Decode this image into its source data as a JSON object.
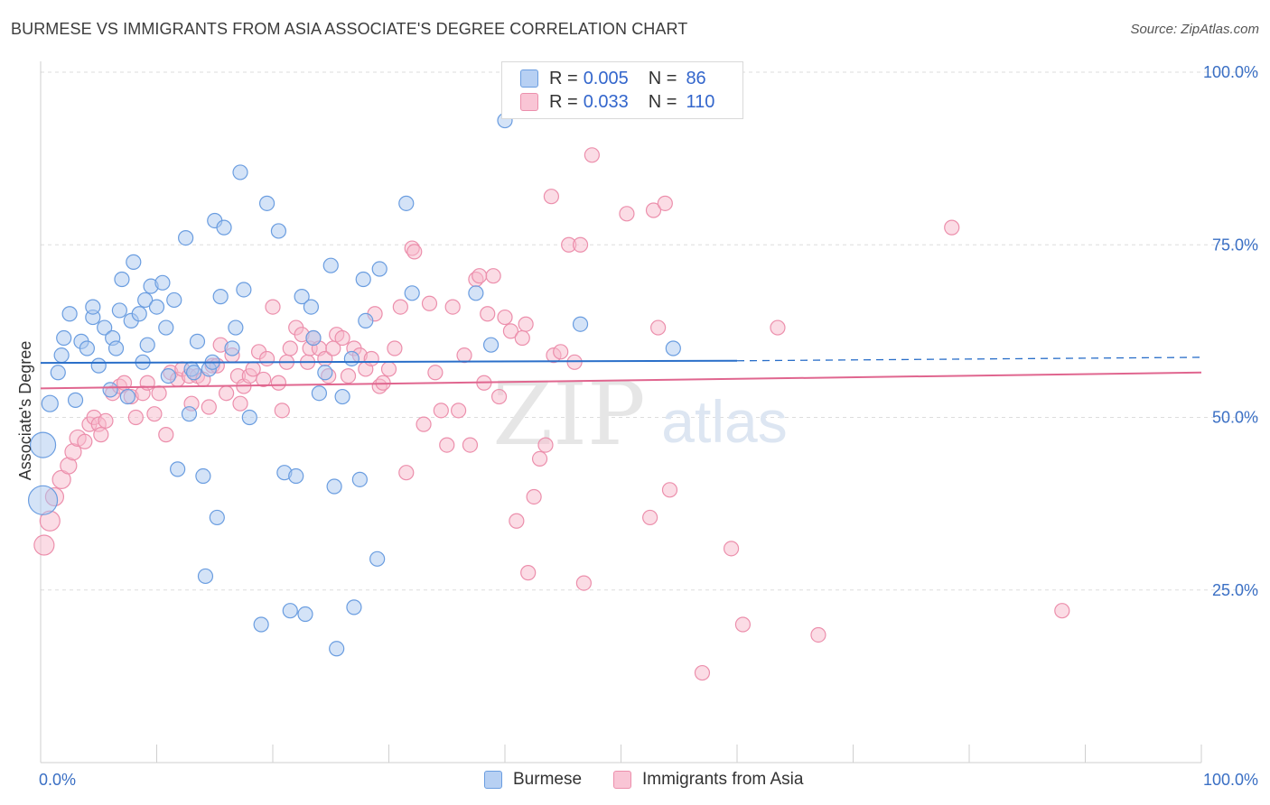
{
  "title": "BURMESE VS IMMIGRANTS FROM ASIA ASSOCIATE'S DEGREE CORRELATION CHART",
  "source": "Source: ZipAtlas.com",
  "watermark": {
    "zip": "ZIP",
    "atlas": "atlas"
  },
  "colors": {
    "burmese_fill": "#a9c8f0",
    "burmese_stroke": "#6a9de0",
    "burmese_line": "#2a6fc9",
    "asia_fill": "#f7b9cc",
    "asia_stroke": "#ec8fac",
    "asia_line": "#e0668f",
    "tick_label": "#3a6fc4",
    "grid": "#dddddd"
  },
  "legend": {
    "rows": [
      {
        "r_label": "R =",
        "r_value": "0.005",
        "n_label": "N =",
        "n_value": "86"
      },
      {
        "r_label": "R =",
        "r_value": "0.033",
        "n_label": "N =",
        "n_value": "110"
      }
    ]
  },
  "chart_data": {
    "type": "scatter",
    "title": "BURMESE VS IMMIGRANTS FROM ASIA ASSOCIATE'S DEGREE CORRELATION CHART",
    "xlabel": "",
    "ylabel": "Associate's Degree",
    "xlim": [
      0,
      100
    ],
    "ylim": [
      0,
      105
    ],
    "x_tick_labels": [
      "0.0%",
      "100.0%"
    ],
    "y_ticks": [
      25,
      50,
      75,
      100
    ],
    "y_tick_labels": [
      "25.0%",
      "50.0%",
      "75.0%",
      "100.0%"
    ],
    "grid": "horizontal dashed",
    "legend_placement": "top-center",
    "series": [
      {
        "name": "Burmese",
        "r": 0.005,
        "n": 86,
        "trend": {
          "x": [
            0,
            60
          ],
          "y": [
            57.9,
            58.2
          ],
          "dashed_extension": {
            "x": [
              60,
              100
            ],
            "y": [
              58.2,
              58.7
            ]
          }
        },
        "points": [
          [
            0.2,
            46,
            14
          ],
          [
            0.2,
            38,
            16
          ],
          [
            0.8,
            52,
            9
          ],
          [
            1.5,
            56.5,
            8
          ],
          [
            1.8,
            59,
            8
          ],
          [
            2,
            61.5,
            8
          ],
          [
            2.5,
            65,
            8
          ],
          [
            3,
            52.5,
            8
          ],
          [
            3.5,
            61,
            8
          ],
          [
            4,
            60,
            8
          ],
          [
            4.5,
            64.5,
            8
          ],
          [
            4.5,
            66,
            8
          ],
          [
            5,
            57.5,
            8
          ],
          [
            5.5,
            63,
            8
          ],
          [
            6,
            54,
            8
          ],
          [
            6.2,
            61.5,
            8
          ],
          [
            6.5,
            60,
            8
          ],
          [
            6.8,
            65.5,
            8
          ],
          [
            7,
            70,
            8
          ],
          [
            7.5,
            53,
            8
          ],
          [
            7.8,
            64,
            8
          ],
          [
            8,
            72.5,
            8
          ],
          [
            8.5,
            65,
            8
          ],
          [
            8.8,
            58,
            8
          ],
          [
            9,
            67,
            8
          ],
          [
            9.2,
            60.5,
            8
          ],
          [
            9.5,
            69,
            8
          ],
          [
            10,
            66,
            8
          ],
          [
            10.5,
            69.5,
            8
          ],
          [
            10.8,
            63,
            8
          ],
          [
            11,
            56,
            8
          ],
          [
            11.5,
            67,
            8
          ],
          [
            11.8,
            42.5,
            8
          ],
          [
            12.5,
            76,
            8
          ],
          [
            12.8,
            50.5,
            8
          ],
          [
            13,
            57,
            8
          ],
          [
            13.2,
            56.5,
            8
          ],
          [
            13.5,
            61,
            8
          ],
          [
            14,
            41.5,
            8
          ],
          [
            14.2,
            27,
            8
          ],
          [
            14.5,
            57,
            8
          ],
          [
            14.8,
            58,
            8
          ],
          [
            15,
            78.5,
            8
          ],
          [
            15.2,
            35.5,
            8
          ],
          [
            15.5,
            67.5,
            8
          ],
          [
            15.8,
            77.5,
            8
          ],
          [
            16.5,
            60,
            8
          ],
          [
            16.8,
            63,
            8
          ],
          [
            17.2,
            85.5,
            8
          ],
          [
            17.5,
            68.5,
            8
          ],
          [
            18,
            50,
            8
          ],
          [
            19,
            20,
            8
          ],
          [
            19.5,
            81,
            8
          ],
          [
            20.5,
            77,
            8
          ],
          [
            21,
            42,
            8
          ],
          [
            21.5,
            22,
            8
          ],
          [
            22,
            41.5,
            8
          ],
          [
            22.5,
            67.5,
            8
          ],
          [
            22.8,
            21.5,
            8
          ],
          [
            23.3,
            66,
            8
          ],
          [
            23.5,
            61.5,
            8
          ],
          [
            24,
            53.5,
            8
          ],
          [
            24.5,
            56.5,
            8
          ],
          [
            25,
            72,
            8
          ],
          [
            25.3,
            40,
            8
          ],
          [
            25.5,
            16.5,
            8
          ],
          [
            26,
            53,
            8
          ],
          [
            26.8,
            58.5,
            8
          ],
          [
            27,
            22.5,
            8
          ],
          [
            27.5,
            41,
            8
          ],
          [
            27.8,
            70,
            8
          ],
          [
            28,
            64,
            8
          ],
          [
            29,
            29.5,
            8
          ],
          [
            29.2,
            71.5,
            8
          ],
          [
            31.5,
            81,
            8
          ],
          [
            32,
            68,
            8
          ],
          [
            37.5,
            68,
            8
          ],
          [
            38.8,
            60.5,
            8
          ],
          [
            40,
            93,
            8
          ],
          [
            46.5,
            63.5,
            8
          ],
          [
            54.5,
            60,
            8
          ]
        ]
      },
      {
        "name": "Immigrants from Asia",
        "r": 0.033,
        "n": 110,
        "trend": {
          "x": [
            0,
            100
          ],
          "y": [
            54.2,
            56.5
          ]
        },
        "points": [
          [
            0.3,
            31.5,
            11
          ],
          [
            0.8,
            35,
            11
          ],
          [
            1.2,
            38.5,
            10
          ],
          [
            1.8,
            41,
            10
          ],
          [
            2.4,
            43,
            9
          ],
          [
            2.8,
            45,
            9
          ],
          [
            3.2,
            47,
            9
          ],
          [
            3.8,
            46.5,
            8
          ],
          [
            4.2,
            49,
            8
          ],
          [
            4.6,
            50,
            8
          ],
          [
            5,
            49,
            8
          ],
          [
            5.2,
            47.5,
            8
          ],
          [
            5.6,
            49.5,
            8
          ],
          [
            6.2,
            53.5,
            8
          ],
          [
            6.8,
            54.5,
            8
          ],
          [
            7.2,
            55,
            8
          ],
          [
            7.8,
            53,
            8
          ],
          [
            8.2,
            50,
            8
          ],
          [
            8.8,
            53.5,
            8
          ],
          [
            9.2,
            55,
            8
          ],
          [
            9.8,
            50.5,
            8
          ],
          [
            10.2,
            53.5,
            8
          ],
          [
            10.8,
            47.5,
            8
          ],
          [
            11.2,
            56.5,
            8
          ],
          [
            11.8,
            55.5,
            8
          ],
          [
            12.2,
            57,
            8
          ],
          [
            12.8,
            56,
            8
          ],
          [
            13,
            52,
            8
          ],
          [
            13.5,
            56,
            8
          ],
          [
            14,
            55.5,
            8
          ],
          [
            14.5,
            51.5,
            8
          ],
          [
            14.8,
            57.5,
            8
          ],
          [
            15.2,
            57.5,
            8
          ],
          [
            15.5,
            60.5,
            8
          ],
          [
            16,
            53.5,
            8
          ],
          [
            16.5,
            59,
            8
          ],
          [
            17,
            56,
            8
          ],
          [
            17.2,
            52,
            8
          ],
          [
            17.5,
            54.5,
            8
          ],
          [
            18,
            56,
            8
          ],
          [
            18.3,
            57,
            8
          ],
          [
            18.8,
            59.5,
            8
          ],
          [
            19.2,
            55.5,
            8
          ],
          [
            19.5,
            58.5,
            8
          ],
          [
            20,
            66,
            8
          ],
          [
            20.5,
            55,
            8
          ],
          [
            20.8,
            51,
            8
          ],
          [
            21.2,
            58,
            8
          ],
          [
            21.5,
            60,
            8
          ],
          [
            22,
            63,
            8
          ],
          [
            22.5,
            62,
            8
          ],
          [
            23,
            58,
            8
          ],
          [
            23.2,
            60,
            8
          ],
          [
            23.5,
            61.5,
            8
          ],
          [
            24,
            60,
            8
          ],
          [
            24.5,
            58.5,
            8
          ],
          [
            24.8,
            56,
            8
          ],
          [
            25.2,
            60,
            8
          ],
          [
            25.5,
            62,
            8
          ],
          [
            26,
            61.5,
            8
          ],
          [
            26.5,
            56,
            8
          ],
          [
            27,
            60,
            8
          ],
          [
            27.5,
            59,
            8
          ],
          [
            28,
            57,
            8
          ],
          [
            28.5,
            58.5,
            8
          ],
          [
            28.8,
            65,
            8
          ],
          [
            29.2,
            54.5,
            8
          ],
          [
            29.5,
            55,
            8
          ],
          [
            30,
            57,
            8
          ],
          [
            30.5,
            60,
            8
          ],
          [
            31,
            66,
            8
          ],
          [
            31.5,
            42,
            8
          ],
          [
            32,
            74.5,
            8
          ],
          [
            32.2,
            74,
            8
          ],
          [
            33,
            49,
            8
          ],
          [
            33.5,
            66.5,
            8
          ],
          [
            34,
            56.5,
            8
          ],
          [
            34.5,
            51,
            8
          ],
          [
            35,
            46,
            8
          ],
          [
            35.5,
            66,
            8
          ],
          [
            36,
            51,
            8
          ],
          [
            36.5,
            59,
            8
          ],
          [
            37,
            46,
            8
          ],
          [
            37.5,
            70,
            8
          ],
          [
            37.8,
            70.5,
            8
          ],
          [
            38.2,
            55,
            8
          ],
          [
            38.5,
            65,
            8
          ],
          [
            39,
            70.5,
            8
          ],
          [
            39.5,
            53,
            8
          ],
          [
            40,
            64.5,
            8
          ],
          [
            40.5,
            62.5,
            8
          ],
          [
            41,
            35,
            8
          ],
          [
            41.5,
            61.5,
            8
          ],
          [
            41.8,
            63.5,
            8
          ],
          [
            42,
            27.5,
            8
          ],
          [
            42.5,
            38.5,
            8
          ],
          [
            43,
            44,
            8
          ],
          [
            43.5,
            46,
            8
          ],
          [
            44,
            82,
            8
          ],
          [
            44.2,
            59,
            8
          ],
          [
            44.8,
            59.5,
            8
          ],
          [
            45.5,
            75,
            8
          ],
          [
            46,
            58,
            8
          ],
          [
            46.5,
            75,
            8
          ],
          [
            46.8,
            26,
            8
          ],
          [
            47.5,
            88,
            8
          ],
          [
            50.5,
            79.5,
            8
          ],
          [
            52.5,
            35.5,
            8
          ],
          [
            52.8,
            80,
            8
          ],
          [
            53.2,
            63,
            8
          ],
          [
            53.8,
            81,
            8
          ],
          [
            54.2,
            39.5,
            8
          ],
          [
            57,
            13,
            8
          ],
          [
            59.5,
            31,
            8
          ],
          [
            60.5,
            20,
            8
          ],
          [
            63.5,
            63,
            8
          ],
          [
            67,
            18.5,
            8
          ],
          [
            78.5,
            77.5,
            8
          ],
          [
            88,
            22,
            8
          ]
        ]
      }
    ]
  },
  "bottom_legend": [
    {
      "name": "Burmese"
    },
    {
      "name": "Immigrants from Asia"
    }
  ]
}
